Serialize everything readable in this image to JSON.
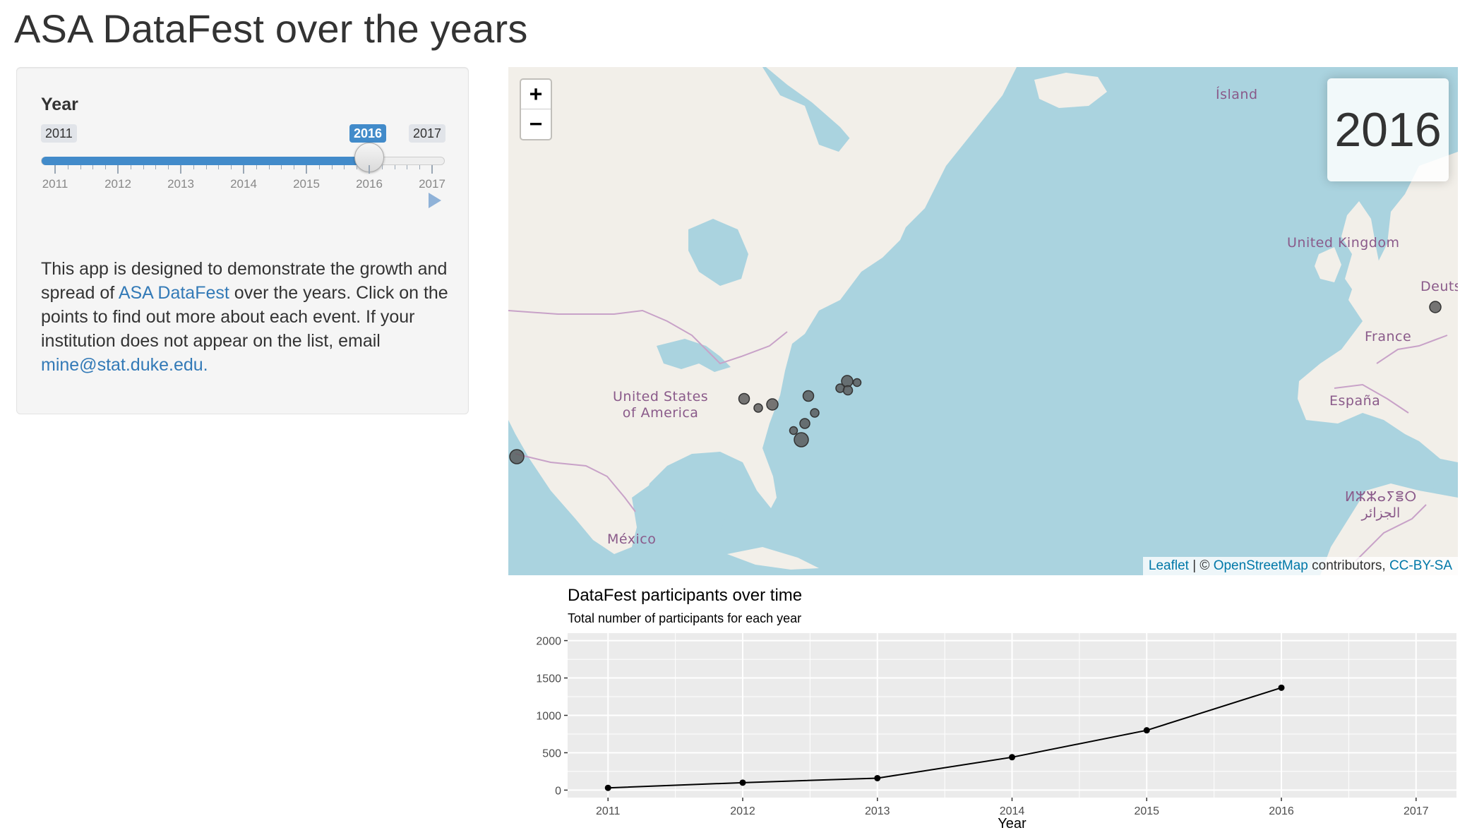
{
  "page": {
    "title": "ASA DataFest over the years"
  },
  "sidebar": {
    "slider": {
      "label": "Year",
      "min": 2011,
      "max": 2017,
      "value": 2016,
      "min_label": "2011",
      "max_label": "2017",
      "value_label": "2016",
      "ticks": [
        "2011",
        "2012",
        "2013",
        "2014",
        "2015",
        "2016",
        "2017"
      ],
      "play_icon": "play-icon"
    },
    "intro": {
      "part1": "This app is designed to demonstrate the growth and spread of ",
      "link1": "ASA DataFest",
      "part2": " over the years. Click on the points to find out more about each event. If your institution does not appear on the list, email ",
      "link2": "mine@stat.duke.edu."
    }
  },
  "map": {
    "year_display": "2016",
    "zoom_in": "+",
    "zoom_out": "−",
    "labels": {
      "island": "Ísland",
      "united_kingdom": "United Kingdom",
      "deutschland": "Deutsc",
      "france": "France",
      "espana": "España",
      "usa_line1": "United States",
      "usa_line2": "of America",
      "mexico": "México",
      "algeria_line1": "ⵍⵣⵣⴰⵢⴻⵔ",
      "algeria_line2": "الجزائر"
    },
    "attribution": {
      "leaflet": "Leaflet",
      "sep": " | © ",
      "osm": "OpenStreetMap",
      "contrib": " contributors, ",
      "license": "CC-BY-SA"
    },
    "colors": {
      "water": "#aad3df",
      "land": "#f2efe9",
      "border": "#c8a2c8",
      "marker": "#555555"
    }
  },
  "chart_data": {
    "type": "line",
    "title": "DataFest participants over time",
    "subtitle": "Total number of participants for each year",
    "xlabel": "Year",
    "ylabel": "",
    "x": [
      2011,
      2012,
      2013,
      2014,
      2015,
      2016
    ],
    "values": [
      30,
      100,
      160,
      440,
      800,
      1370
    ],
    "xlim": [
      2010.7,
      2017.3
    ],
    "ylim": [
      -100,
      2100
    ],
    "xticks": [
      2011,
      2012,
      2013,
      2014,
      2015,
      2016,
      2017
    ],
    "yticks": [
      0,
      500,
      1000,
      1500,
      2000
    ],
    "grid": true,
    "colors": {
      "panel": "#ebebeb",
      "grid": "#ffffff",
      "line": "#000000"
    }
  }
}
